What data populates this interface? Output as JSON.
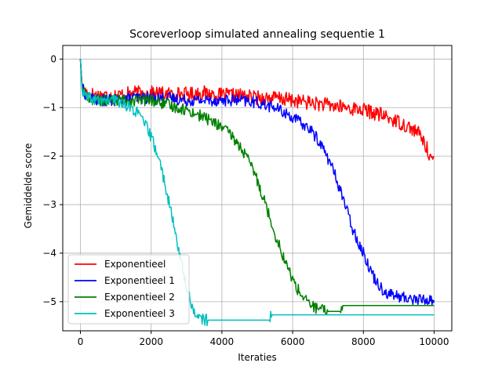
{
  "chart_data": {
    "type": "line",
    "title": "Scoreverloop simulated annealing sequentie 1",
    "xlabel": "Iteraties",
    "ylabel": "Gemiddelde score",
    "xlim": [
      -500,
      10500
    ],
    "ylim": [
      -5.6,
      0.28
    ],
    "x_ticks": [
      0,
      2000,
      4000,
      6000,
      8000,
      10000
    ],
    "x_tick_labels": [
      "0",
      "2000",
      "4000",
      "6000",
      "8000",
      "10000"
    ],
    "y_ticks": [
      0,
      -1,
      -2,
      -3,
      -4,
      -5
    ],
    "y_tick_labels": [
      "0",
      "−1",
      "−2",
      "−3",
      "−4",
      "−5"
    ],
    "grid": true,
    "legend_position": "lower-left",
    "series": [
      {
        "name": "Exponentieel",
        "color": "#ff0000",
        "x": [
          0,
          50,
          200,
          500,
          1000,
          1500,
          2000,
          2500,
          3000,
          3500,
          4000,
          4500,
          5000,
          5500,
          6000,
          6500,
          7000,
          7500,
          8000,
          8500,
          9000,
          9300,
          9600,
          9800,
          10000
        ],
        "y": [
          0,
          -0.6,
          -0.7,
          -0.75,
          -0.75,
          -0.7,
          -0.7,
          -0.72,
          -0.72,
          -0.7,
          -0.75,
          -0.75,
          -0.8,
          -0.8,
          -0.85,
          -0.9,
          -0.95,
          -1.0,
          -1.05,
          -1.15,
          -1.3,
          -1.4,
          -1.55,
          -1.85,
          -2.15
        ],
        "noise": 0.15
      },
      {
        "name": "Exponentieel 1",
        "color": "#0000ff",
        "x": [
          0,
          50,
          200,
          500,
          1000,
          1500,
          2000,
          2500,
          3000,
          3500,
          4000,
          4500,
          5000,
          5500,
          6000,
          6500,
          6800,
          7100,
          7400,
          7700,
          8000,
          8300,
          8600,
          9000,
          9500,
          10000
        ],
        "y": [
          0,
          -0.6,
          -0.8,
          -0.85,
          -0.85,
          -0.8,
          -0.8,
          -0.8,
          -0.85,
          -0.85,
          -0.85,
          -0.85,
          -0.9,
          -1.0,
          -1.2,
          -1.45,
          -1.75,
          -2.2,
          -2.8,
          -3.5,
          -4.0,
          -4.5,
          -4.8,
          -4.9,
          -4.95,
          -4.97
        ],
        "noise": 0.12
      },
      {
        "name": "Exponentieel 2",
        "color": "#008000",
        "x": [
          0,
          50,
          200,
          500,
          1000,
          1500,
          2000,
          2500,
          3000,
          3500,
          4000,
          4300,
          4600,
          4900,
          5200,
          5500,
          5800,
          6100,
          6400,
          6700,
          7000,
          7300,
          7350,
          7400,
          8000,
          9000,
          10000
        ],
        "y": [
          0,
          -0.6,
          -0.8,
          -0.85,
          -0.85,
          -0.85,
          -0.85,
          -0.95,
          -1.05,
          -1.2,
          -1.4,
          -1.6,
          -1.9,
          -2.3,
          -2.9,
          -3.6,
          -4.2,
          -4.7,
          -5.0,
          -5.15,
          -5.2,
          -5.2,
          -5.2,
          -5.08,
          -5.08,
          -5.08,
          -5.08
        ],
        "noise": 0.12
      },
      {
        "name": "Exponentieel 3",
        "color": "#00bfbf",
        "x": [
          0,
          50,
          200,
          500,
          1000,
          1300,
          1600,
          1800,
          2000,
          2200,
          2400,
          2600,
          2800,
          3000,
          3200,
          3400,
          3600,
          4000,
          4500,
          5000,
          5350,
          5400,
          6000,
          7000,
          8000,
          9000,
          10000
        ],
        "y": [
          0,
          -0.7,
          -0.8,
          -0.85,
          -0.85,
          -0.95,
          -1.1,
          -1.3,
          -1.6,
          -2.0,
          -2.6,
          -3.3,
          -4.0,
          -4.7,
          -5.2,
          -5.35,
          -5.38,
          -5.38,
          -5.38,
          -5.38,
          -5.38,
          -5.27,
          -5.27,
          -5.27,
          -5.27,
          -5.27,
          -5.27
        ],
        "noise": 0.12
      }
    ]
  }
}
